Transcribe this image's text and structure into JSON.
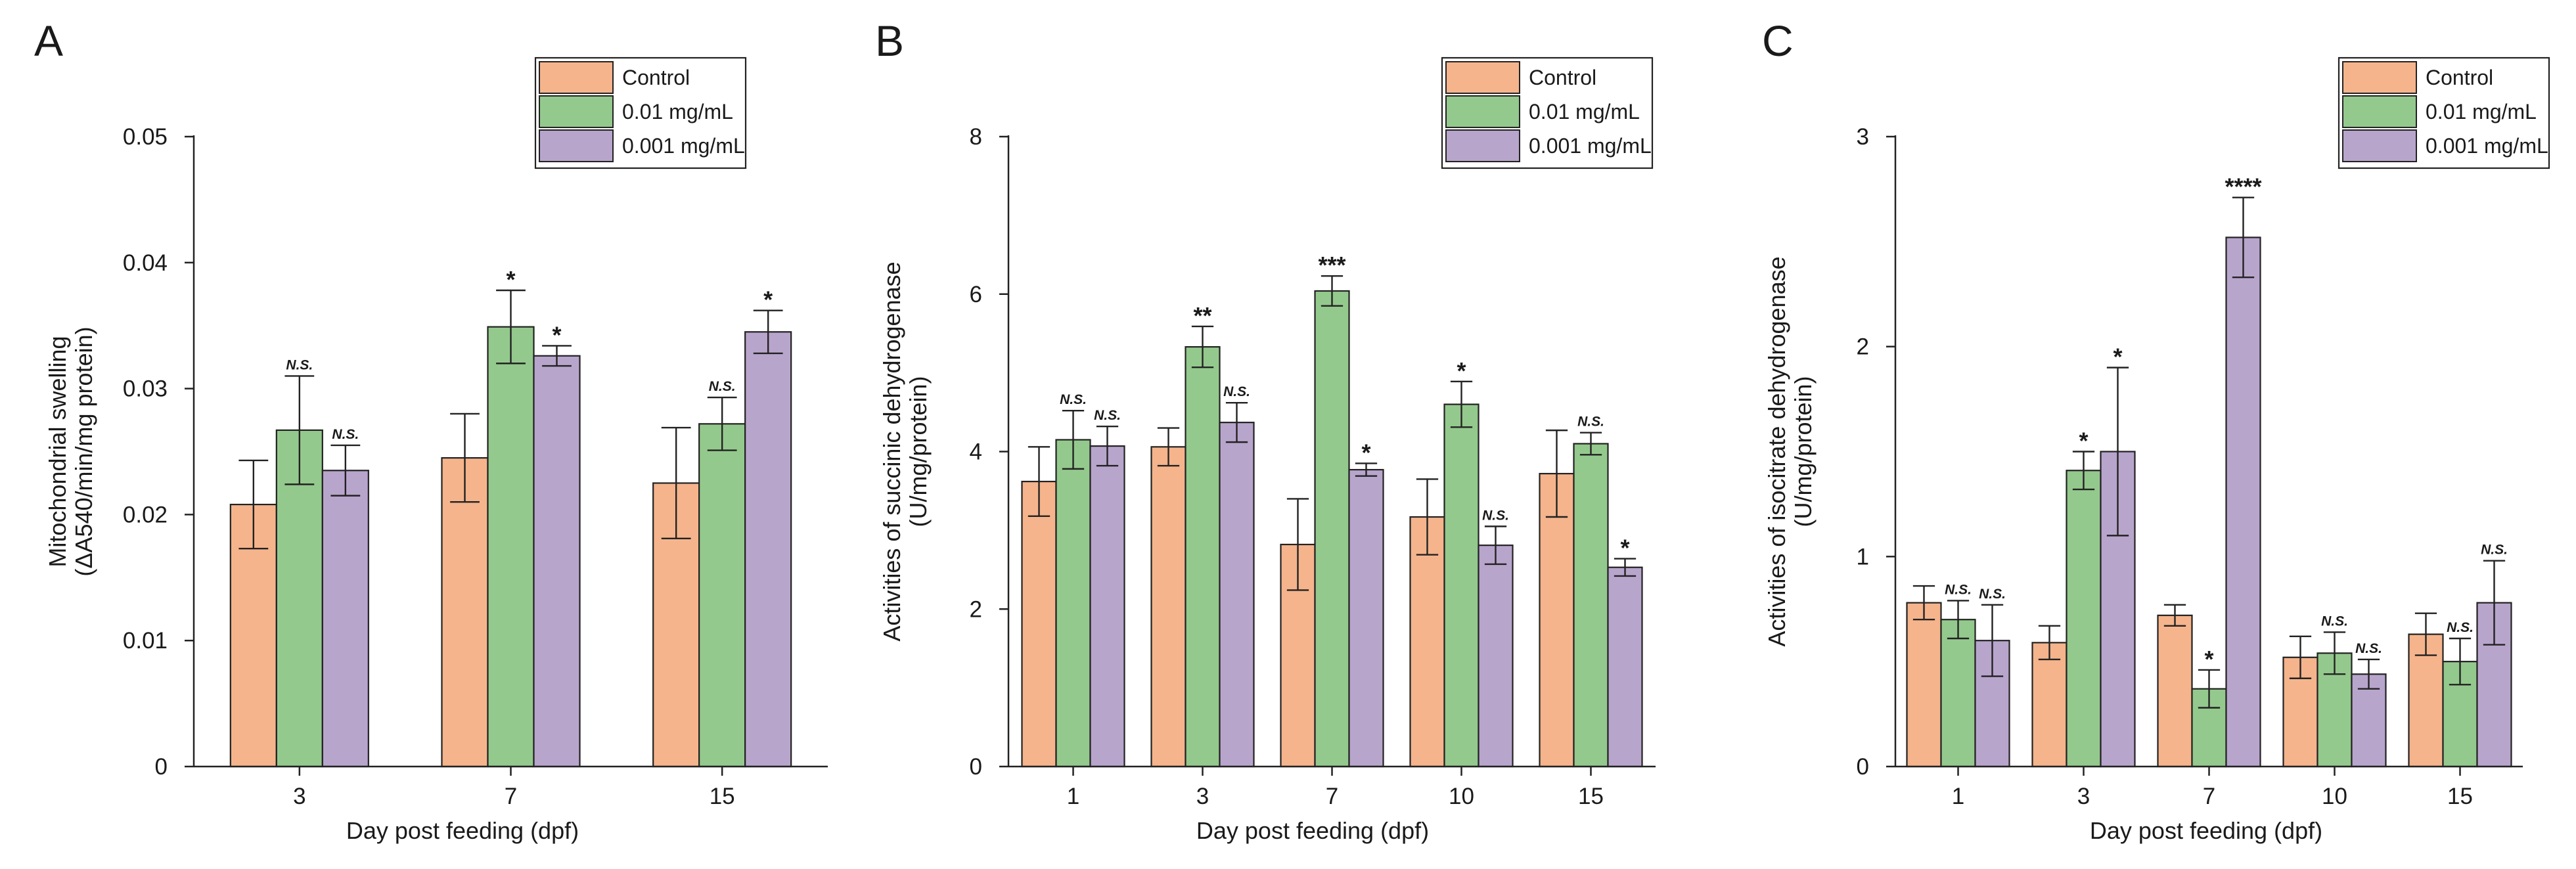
{
  "colors": {
    "control": "#f5b48c",
    "mid": "#94c98d",
    "low": "#b8a5cc",
    "stroke": "#222222"
  },
  "legend_labels": [
    "Control",
    "0.01 mg/mL",
    "0.001 mg/mL"
  ],
  "chart_data": [
    {
      "type": "bar",
      "panel": "A",
      "title": "",
      "xlabel": "Day post feeding (dpf)",
      "ylabel": "Mitochondrial swelling",
      "ylabel2": "(ΔA540/min/mg protein)",
      "ylim": [
        0,
        0.05
      ],
      "yticks": [
        0,
        0.01,
        0.02,
        0.03,
        0.04,
        0.05
      ],
      "ytick_labels": [
        "0",
        "0.01",
        "0.02",
        "0.03",
        "0.04",
        "0.05"
      ],
      "categories": [
        "3",
        "7",
        "15"
      ],
      "legend_position": "top-right",
      "series": [
        {
          "name": "Control",
          "values": [
            0.0208,
            0.0245,
            0.0225
          ],
          "errors": [
            0.0035,
            0.0035,
            0.0044
          ],
          "labels": [
            "",
            "",
            ""
          ]
        },
        {
          "name": "0.01 mg/mL",
          "values": [
            0.0267,
            0.0349,
            0.0272
          ],
          "errors": [
            0.0043,
            0.0029,
            0.0021
          ],
          "labels": [
            "N.S.",
            "*",
            "N.S."
          ]
        },
        {
          "name": "0.001 mg/mL",
          "values": [
            0.0235,
            0.0326,
            0.0345
          ],
          "errors": [
            0.002,
            0.0008,
            0.0017
          ],
          "labels": [
            "N.S.",
            "*",
            "*"
          ]
        }
      ]
    },
    {
      "type": "bar",
      "panel": "B",
      "title": "",
      "xlabel": "Day post feeding (dpf)",
      "ylabel": "Activities of succinic dehydrogenase",
      "ylabel2": "(U/mg/protein)",
      "ylim": [
        0,
        8
      ],
      "yticks": [
        0,
        2,
        4,
        6,
        8
      ],
      "ytick_labels": [
        "0",
        "2",
        "4",
        "6",
        "8"
      ],
      "categories": [
        "1",
        "3",
        "7",
        "10",
        "15"
      ],
      "legend_position": "top-right",
      "series": [
        {
          "name": "Control",
          "values": [
            3.62,
            4.06,
            2.82,
            3.17,
            3.72
          ],
          "errors": [
            0.44,
            0.24,
            0.58,
            0.48,
            0.55
          ],
          "labels": [
            "",
            "",
            "",
            "",
            ""
          ]
        },
        {
          "name": "0.01 mg/mL",
          "values": [
            4.15,
            5.33,
            6.04,
            4.6,
            4.1
          ],
          "errors": [
            0.37,
            0.26,
            0.19,
            0.29,
            0.14
          ],
          "labels": [
            "N.S.",
            "**",
            "***",
            "*",
            "N.S."
          ]
        },
        {
          "name": "0.001 mg/mL",
          "values": [
            4.07,
            4.37,
            3.77,
            2.81,
            2.53
          ],
          "errors": [
            0.25,
            0.25,
            0.08,
            0.24,
            0.11
          ],
          "labels": [
            "N.S.",
            "N.S.",
            "*",
            "N.S.",
            "*"
          ]
        }
      ]
    },
    {
      "type": "bar",
      "panel": "C",
      "title": "",
      "xlabel": "Day post feeding (dpf)",
      "ylabel": "Activities of isocitrate dehydrogenase",
      "ylabel2": "(U/mg/protein)",
      "ylim": [
        0,
        3
      ],
      "yticks": [
        0,
        1,
        2,
        3
      ],
      "ytick_labels": [
        "0",
        "1",
        "2",
        "3"
      ],
      "categories": [
        "1",
        "3",
        "7",
        "10",
        "15"
      ],
      "legend_position": "top-right",
      "series": [
        {
          "name": "Control",
          "values": [
            0.78,
            0.59,
            0.72,
            0.52,
            0.63
          ],
          "errors": [
            0.08,
            0.08,
            0.05,
            0.1,
            0.1
          ],
          "labels": [
            "",
            "",
            "",
            "",
            ""
          ]
        },
        {
          "name": "0.01 mg/mL",
          "values": [
            0.7,
            1.41,
            0.37,
            0.54,
            0.5
          ],
          "errors": [
            0.09,
            0.09,
            0.09,
            0.1,
            0.11
          ],
          "labels": [
            "N.S.",
            "*",
            "*",
            "N.S.",
            "N.S."
          ]
        },
        {
          "name": "0.001 mg/mL",
          "values": [
            0.6,
            1.5,
            2.52,
            0.44,
            0.78
          ],
          "errors": [
            0.17,
            0.4,
            0.19,
            0.07,
            0.2
          ],
          "labels": [
            "N.S.",
            "*",
            "****",
            "N.S.",
            "N.S."
          ]
        }
      ]
    }
  ]
}
